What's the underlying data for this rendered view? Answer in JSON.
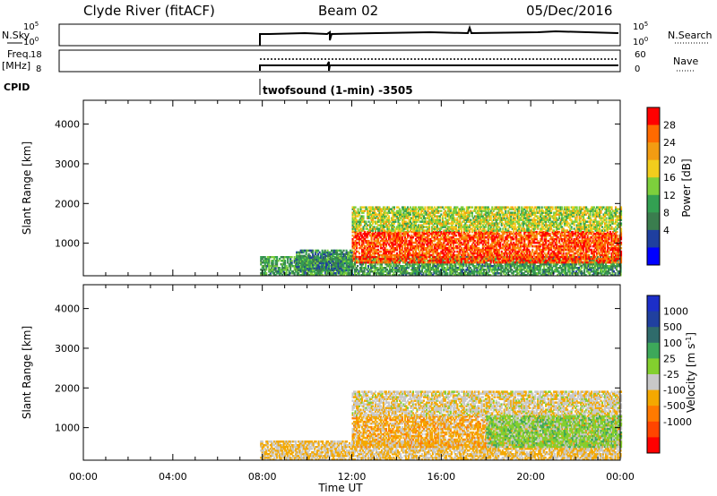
{
  "header": {
    "station": "Clyde River (fitACF)",
    "beam": "Beam 02",
    "date": "05/Dec/2016"
  },
  "panels": {
    "nsky_label": "N.Sky",
    "nsearch_label": "N.Search",
    "freq_label_1": "Freq.",
    "freq_label_2": "[MHz]",
    "nave_label": "Nave",
    "cpid_label": "CPID",
    "cpid_text": "twofsound (1-min) -3505",
    "nsky_ticks": [
      "10^5",
      "10^0"
    ],
    "nsearch_ticks": [
      "10^5",
      "10^0"
    ],
    "freq_ticks": [
      "18",
      "8"
    ],
    "nave_ticks": [
      "60",
      "0"
    ]
  },
  "axes": {
    "xlabel": "Time UT",
    "ylabel": "Slant Range [km]"
  },
  "colors": {
    "power": [
      "#0000ff",
      "#1f3f9f",
      "#3a7d4e",
      "#33a052",
      "#7dcf3c",
      "#f2cd1d",
      "#f39c12",
      "#ff6a00",
      "#ff0000"
    ],
    "velocity": [
      "#1c2ec9",
      "#20409f",
      "#2f6b6b",
      "#3da85a",
      "#83cf2e",
      "#c8c8c8",
      "#f4a800",
      "#ff7a00",
      "#ff4500",
      "#ff0000"
    ]
  },
  "chart_data": [
    {
      "type": "heatmap",
      "title": "Power",
      "xlabel": "Time UT",
      "ylabel": "Slant Range [km]",
      "x_ticks": [
        "00:00",
        "04:00",
        "08:00",
        "12:00",
        "16:00",
        "20:00",
        "00:00"
      ],
      "xlim_hours": [
        0,
        24
      ],
      "ylim": [
        180,
        4600
      ],
      "y_ticks": [
        1000,
        2000,
        3000,
        4000
      ],
      "colorbar_label": "Power [dB]",
      "colorbar_ticks": [
        "4",
        "8",
        "12",
        "16",
        "20",
        "24",
        "28"
      ],
      "colorbar_range": [
        0,
        32
      ],
      "regions": [
        {
          "t0": 7.9,
          "t1": 24,
          "r0": 180,
          "r1": 650,
          "level": 0.35
        },
        {
          "t0": 12,
          "t1": 24,
          "r0": 500,
          "r1": 1300,
          "level": 0.92
        },
        {
          "t0": 12,
          "t1": 24,
          "r0": 1300,
          "r1": 1900,
          "level": 0.55
        },
        {
          "t0": 9.5,
          "t1": 12,
          "r0": 300,
          "r1": 800,
          "level": 0.3
        }
      ]
    },
    {
      "type": "heatmap",
      "title": "Velocity",
      "xlabel": "Time UT",
      "ylabel": "Slant Range [km]",
      "x_ticks": [
        "00:00",
        "04:00",
        "08:00",
        "12:00",
        "16:00",
        "20:00",
        "00:00"
      ],
      "xlim_hours": [
        0,
        24
      ],
      "ylim": [
        180,
        4600
      ],
      "y_ticks": [
        1000,
        2000,
        3000,
        4000
      ],
      "colorbar_label": "Velocity [m s^-1]",
      "colorbar_ticks": [
        "1000",
        "500",
        "100",
        "25",
        "-25",
        "-100",
        "-500",
        "-1000"
      ],
      "colorbar_range": [
        -1250,
        1250
      ],
      "regions": [
        {
          "t0": 7.9,
          "t1": 24,
          "r0": 180,
          "r1": 650,
          "level": -300
        },
        {
          "t0": 12,
          "t1": 24,
          "r0": 500,
          "r1": 1300,
          "level": -400
        },
        {
          "t0": 12,
          "t1": 24,
          "r0": 1300,
          "r1": 1900,
          "level": -200
        },
        {
          "t0": 18,
          "t1": 24,
          "r0": 500,
          "r1": 1300,
          "level": 150
        }
      ]
    }
  ]
}
